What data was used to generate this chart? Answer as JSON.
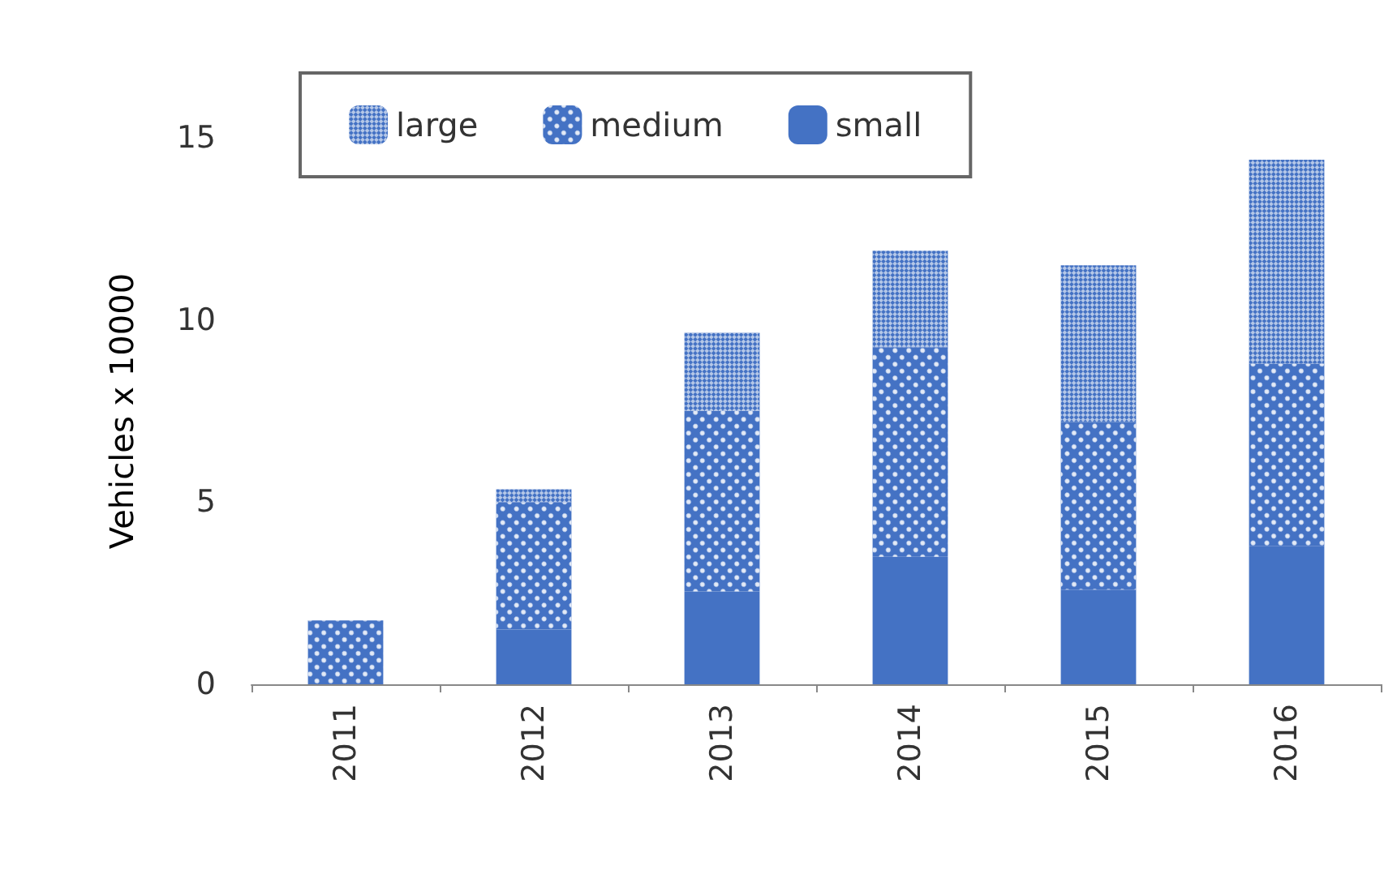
{
  "chart_data": {
    "type": "bar",
    "ylabel": "Vehicles x 10000",
    "categories": [
      "2011",
      "2012",
      "2013",
      "2014",
      "2015",
      "2016"
    ],
    "stacked": true,
    "series": [
      {
        "name": "small",
        "color": "#4472c4",
        "values": [
          0,
          1.5,
          2.55,
          3.5,
          2.6,
          3.8
        ]
      },
      {
        "name": "medium",
        "color": "#4472c4",
        "values": [
          1.75,
          3.5,
          4.95,
          5.75,
          4.6,
          5.0
        ]
      },
      {
        "name": "large",
        "color": "#4472c4",
        "values": [
          0,
          0.35,
          2.15,
          2.65,
          4.3,
          5.6
        ]
      }
    ],
    "ylim": [
      0,
      15
    ],
    "yticks": [
      0,
      5,
      10,
      15
    ],
    "grid": false,
    "legend": "top"
  }
}
